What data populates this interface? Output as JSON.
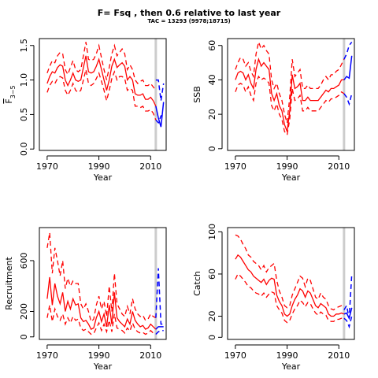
{
  "title": "F= Fsq , then 0.6  relative to last year",
  "subtitle": "TAC = 13293 (9978;18715)",
  "chart_data": [
    {
      "id": "f",
      "type": "line",
      "xlabel": "Year",
      "ylabel": "F",
      "ylabel_sub": "3−5",
      "xlim": [
        1967,
        2016
      ],
      "ylim": [
        -0.02,
        1.6
      ],
      "xticks": [
        1970,
        1990,
        2010
      ],
      "yticks": [
        0.0,
        0.5,
        1.0,
        1.5
      ],
      "ytick_labels": [
        "0.0",
        "0.5",
        "1.0",
        "1.5"
      ],
      "vline": 2012,
      "historic": {
        "x": [
          1970,
          1971,
          1972,
          1973,
          1974,
          1975,
          1976,
          1977,
          1978,
          1979,
          1980,
          1981,
          1982,
          1983,
          1984,
          1985,
          1986,
          1987,
          1988,
          1989,
          1990,
          1991,
          1992,
          1993,
          1994,
          1995,
          1996,
          1997,
          1998,
          1999,
          2000,
          2001,
          2002,
          2003,
          2004,
          2005,
          2006,
          2007,
          2008,
          2009,
          2010,
          2011,
          2012
        ],
        "mid": [
          0.95,
          1.05,
          1.12,
          1.1,
          1.18,
          1.22,
          1.2,
          1.0,
          0.92,
          1.0,
          1.1,
          1.0,
          0.98,
          1.0,
          1.18,
          1.35,
          1.12,
          1.1,
          1.12,
          1.2,
          1.3,
          1.15,
          1.0,
          0.85,
          1.0,
          1.2,
          1.3,
          1.18,
          1.22,
          1.25,
          1.2,
          1.0,
          1.05,
          1.0,
          0.8,
          0.78,
          0.78,
          0.8,
          0.72,
          0.72,
          0.75,
          0.7,
          0.62
        ],
        "upper": [
          1.1,
          1.2,
          1.28,
          1.25,
          1.35,
          1.4,
          1.38,
          1.15,
          1.08,
          1.18,
          1.28,
          1.15,
          1.12,
          1.15,
          1.35,
          1.55,
          1.3,
          1.28,
          1.3,
          1.38,
          1.5,
          1.32,
          1.15,
          1.0,
          1.18,
          1.38,
          1.5,
          1.35,
          1.4,
          1.45,
          1.38,
          1.15,
          1.22,
          1.15,
          1.0,
          0.95,
          0.98,
          1.0,
          0.92,
          0.92,
          0.95,
          0.9,
          0.85
        ],
        "lower": [
          0.82,
          0.92,
          0.98,
          0.95,
          1.02,
          1.05,
          1.03,
          0.85,
          0.78,
          0.85,
          0.95,
          0.85,
          0.82,
          0.85,
          1.0,
          1.15,
          0.95,
          0.92,
          0.95,
          1.02,
          1.1,
          0.98,
          0.85,
          0.7,
          0.85,
          1.02,
          1.12,
          1.0,
          1.05,
          1.05,
          1.02,
          0.85,
          0.88,
          0.85,
          0.62,
          0.62,
          0.6,
          0.62,
          0.55,
          0.55,
          0.57,
          0.52,
          0.42
        ]
      },
      "projection": {
        "x": [
          2012,
          2013,
          2014,
          2015
        ],
        "mid": [
          0.62,
          0.45,
          0.32,
          0.68
        ],
        "upper": [
          1.0,
          1.0,
          0.7,
          0.95
        ],
        "lower": [
          0.42,
          0.38,
          0.48,
          0.5
        ]
      }
    },
    {
      "id": "ssb",
      "type": "line",
      "xlabel": "Year",
      "ylabel": "SSB",
      "xlim": [
        1967,
        2016
      ],
      "ylim": [
        -1,
        64
      ],
      "xticks": [
        1970,
        1990,
        2010
      ],
      "yticks": [
        0,
        20,
        40,
        60
      ],
      "ytick_labels": [
        "0",
        "20",
        "40",
        "60"
      ],
      "vline": 2012,
      "historic": {
        "x": [
          1970,
          1971,
          1972,
          1973,
          1974,
          1975,
          1976,
          1977,
          1978,
          1979,
          1980,
          1981,
          1982,
          1983,
          1984,
          1985,
          1986,
          1987,
          1988,
          1989,
          1990,
          1991,
          1992,
          1993,
          1994,
          1995,
          1996,
          1997,
          1998,
          1999,
          2000,
          2001,
          2002,
          2003,
          2004,
          2005,
          2006,
          2007,
          2008,
          2009,
          2010,
          2011,
          2012
        ],
        "mid": [
          40,
          44,
          45,
          44,
          40,
          43,
          38,
          35,
          46,
          52,
          48,
          50,
          48,
          46,
          32,
          28,
          32,
          25,
          22,
          14,
          10,
          22,
          43,
          35,
          36,
          38,
          28,
          28,
          30,
          28,
          28,
          28,
          28,
          30,
          32,
          34,
          33,
          35,
          35,
          36,
          37,
          40,
          40
        ],
        "upper": [
          46,
          50,
          53,
          52,
          48,
          50,
          45,
          42,
          55,
          62,
          58,
          60,
          57,
          55,
          40,
          35,
          38,
          32,
          28,
          20,
          15,
          30,
          52,
          42,
          44,
          46,
          35,
          35,
          37,
          35,
          35,
          35,
          35,
          37,
          40,
          42,
          40,
          43,
          43,
          45,
          46,
          49,
          52
        ],
        "lower": [
          33,
          37,
          38,
          37,
          33,
          36,
          31,
          28,
          38,
          42,
          40,
          41,
          40,
          38,
          25,
          22,
          26,
          20,
          17,
          10,
          8,
          17,
          35,
          28,
          29,
          31,
          22,
          22,
          24,
          22,
          22,
          22,
          22,
          24,
          26,
          28,
          27,
          29,
          29,
          30,
          31,
          33,
          32
        ]
      },
      "projection": {
        "x": [
          2012,
          2013,
          2014,
          2015
        ],
        "mid": [
          40,
          42,
          41,
          54
        ],
        "upper": [
          52,
          55,
          60,
          62
        ],
        "lower": [
          32,
          30,
          26,
          32
        ]
      }
    },
    {
      "id": "recruitment",
      "type": "line",
      "xlabel": "Year",
      "ylabel": "Recruitment",
      "xlim": [
        1967,
        2016
      ],
      "ylim": [
        -20,
        860
      ],
      "xticks": [
        1970,
        1990,
        2010
      ],
      "yticks": [
        0,
        200,
        600
      ],
      "ytick_labels": [
        "0",
        "200",
        "600"
      ],
      "vline": 2012,
      "historic": {
        "x": [
          1970,
          1971,
          1972,
          1973,
          1974,
          1975,
          1976,
          1977,
          1978,
          1979,
          1980,
          1981,
          1982,
          1983,
          1984,
          1985,
          1986,
          1987,
          1988,
          1989,
          1990,
          1991,
          1992,
          1993,
          1994,
          1995,
          1996,
          1997,
          1998,
          1999,
          2000,
          2001,
          2002,
          2003,
          2004,
          2005,
          2006,
          2007,
          2008,
          2009,
          2010,
          2011,
          2012
        ],
        "mid": [
          300,
          470,
          250,
          420,
          320,
          260,
          350,
          200,
          280,
          220,
          300,
          250,
          260,
          150,
          120,
          130,
          100,
          60,
          70,
          150,
          200,
          120,
          180,
          80,
          250,
          100,
          350,
          150,
          120,
          100,
          80,
          140,
          100,
          200,
          130,
          100,
          80,
          90,
          60,
          70,
          100,
          80,
          60
        ],
        "upper": [
          700,
          820,
          500,
          700,
          600,
          480,
          600,
          380,
          460,
          400,
          440,
          420,
          420,
          260,
          220,
          260,
          200,
          120,
          140,
          250,
          320,
          220,
          280,
          160,
          400,
          200,
          500,
          260,
          220,
          180,
          160,
          240,
          180,
          300,
          220,
          180,
          160,
          170,
          130,
          140,
          180,
          160,
          150
        ],
        "lower": [
          150,
          250,
          120,
          220,
          160,
          130,
          180,
          100,
          150,
          110,
          160,
          130,
          140,
          70,
          50,
          60,
          40,
          20,
          25,
          70,
          110,
          50,
          100,
          40,
          130,
          40,
          180,
          70,
          60,
          50,
          30,
          70,
          45,
          110,
          60,
          40,
          30,
          35,
          20,
          30,
          50,
          30,
          20
        ]
      },
      "projection": {
        "x": [
          2012,
          2013,
          2014,
          2015
        ],
        "mid": [
          60,
          80,
          80,
          80
        ],
        "upper": [
          150,
          540,
          100,
          100
        ],
        "lower": [
          20,
          40,
          50,
          50
        ]
      }
    },
    {
      "id": "catch",
      "type": "line",
      "xlabel": "Year",
      "ylabel": "Catch",
      "xlim": [
        1967,
        2016
      ],
      "ylim": [
        -2,
        104
      ],
      "xticks": [
        1970,
        1990,
        2010
      ],
      "yticks": [
        0,
        20,
        60,
        100
      ],
      "ytick_labels": [
        "0",
        "20",
        "60",
        "100"
      ],
      "vline": 2012,
      "historic": {
        "x": [
          1970,
          1971,
          1972,
          1973,
          1974,
          1975,
          1976,
          1977,
          1978,
          1979,
          1980,
          1981,
          1982,
          1983,
          1984,
          1985,
          1986,
          1987,
          1988,
          1989,
          1990,
          1991,
          1992,
          1993,
          1994,
          1995,
          1996,
          1997,
          1998,
          1999,
          2000,
          2001,
          2002,
          2003,
          2004,
          2005,
          2006,
          2007,
          2008,
          2009,
          2010,
          2011,
          2012
        ],
        "mid": [
          74,
          78,
          76,
          72,
          68,
          64,
          62,
          58,
          56,
          54,
          52,
          55,
          50,
          54,
          56,
          55,
          40,
          34,
          30,
          22,
          20,
          22,
          30,
          36,
          40,
          46,
          44,
          38,
          44,
          42,
          36,
          30,
          28,
          32,
          30,
          28,
          22,
          20,
          20,
          22,
          22,
          23,
          22
        ],
        "upper": [
          97,
          96,
          93,
          88,
          84,
          78,
          76,
          72,
          70,
          68,
          64,
          68,
          62,
          66,
          68,
          70,
          54,
          44,
          38,
          30,
          28,
          30,
          40,
          46,
          52,
          58,
          56,
          48,
          56,
          54,
          46,
          38,
          36,
          42,
          38,
          36,
          30,
          27,
          26,
          28,
          29,
          30,
          32
        ],
        "lower": [
          55,
          60,
          58,
          55,
          52,
          48,
          47,
          44,
          42,
          41,
          39,
          42,
          38,
          41,
          43,
          42,
          30,
          26,
          23,
          16,
          14,
          16,
          22,
          27,
          30,
          35,
          33,
          29,
          33,
          32,
          27,
          23,
          21,
          24,
          22,
          21,
          16,
          15,
          15,
          17,
          17,
          18,
          18
        ]
      },
      "projection": {
        "x": [
          2012,
          2013,
          2014,
          2015
        ],
        "mid": [
          22,
          23,
          18,
          28
        ],
        "upper": [
          26,
          30,
          18,
          60
        ],
        "lower": [
          18,
          16,
          10,
          20
        ]
      }
    }
  ],
  "colors": {
    "historic": "#ff0000",
    "projection": "#0000ff",
    "vline": "#cccccc",
    "axis": "#000000"
  }
}
